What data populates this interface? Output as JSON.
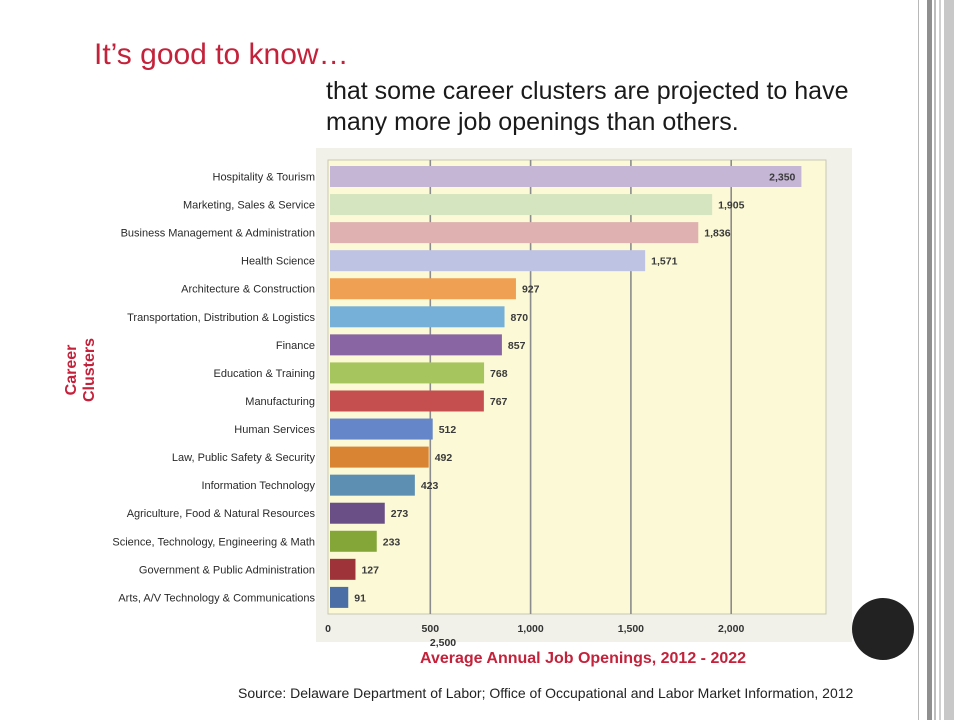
{
  "slide": {
    "headline": "It’s good to know…",
    "subline": "that some career clusters are projected to have many more job openings than others.",
    "source": "Source: Delaware Department of Labor;  Office of Occupational and Labor Market Information, 2012",
    "colors": {
      "accent": "#c4213a",
      "plot_background": "#fbf9d6",
      "text": "#1a1a1a"
    }
  },
  "chart_data": {
    "type": "bar",
    "orientation": "horizontal",
    "xlabel": "Average Annual Job Openings, 2012 - 2022",
    "ylabel": "Career\nClusters",
    "xlim": [
      0,
      2500
    ],
    "xticks": [
      0,
      500,
      1000,
      1500,
      2000,
      2500
    ],
    "xtick_labels": [
      "0",
      "500",
      "1,000",
      "1,500",
      "2,000",
      "2,500"
    ],
    "grid": true,
    "categories": [
      "Hospitality & Tourism",
      "Marketing, Sales & Service",
      "Business Management & Administration",
      "Health Science",
      "Architecture & Construction",
      "Transportation, Distribution & Logistics",
      "Finance",
      "Education & Training",
      "Manufacturing",
      "Human Services",
      "Law, Public Safety & Security",
      "Information Technology",
      "Agriculture, Food & Natural Resources",
      "Science, Technology, Engineering & Math",
      "Government & Public Administration",
      "Arts, A/V Technology & Communications"
    ],
    "values": [
      2350,
      1905,
      1836,
      1571,
      927,
      870,
      857,
      768,
      767,
      512,
      492,
      423,
      273,
      233,
      127,
      91
    ],
    "value_labels": [
      "2,350",
      "1,905",
      "1,836",
      "1,571",
      "927",
      "870",
      "857",
      "768",
      "767",
      "512",
      "492",
      "423",
      "273",
      "233",
      "127",
      "91"
    ],
    "bar_colors": [
      "#c6b6d6",
      "#d5e5bf",
      "#dfb1b0",
      "#bec3e3",
      "#f0a053",
      "#76b0d8",
      "#8a65a3",
      "#a7c55e",
      "#c54e4f",
      "#6586c8",
      "#d88433",
      "#5d8fb2",
      "#6a4f86",
      "#84a537",
      "#9e3439",
      "#4c6ea7"
    ]
  }
}
